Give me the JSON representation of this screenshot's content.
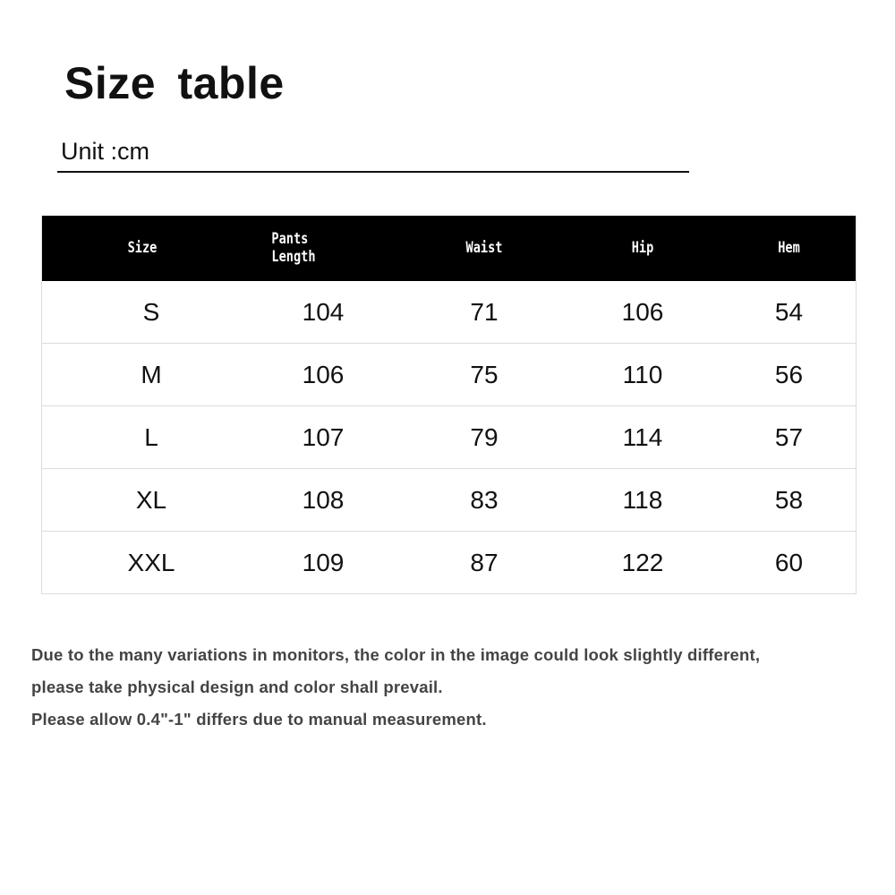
{
  "title": "Size table",
  "unit": "Unit :cm",
  "table": {
    "headers": [
      "Size",
      "Pants\nLength",
      "Waist",
      "Hip",
      "Hem"
    ],
    "rows": [
      [
        "S",
        "104",
        "71",
        "106",
        "54"
      ],
      [
        "M",
        "106",
        "75",
        "110",
        "56"
      ],
      [
        "L",
        "107",
        "79",
        "114",
        "57"
      ],
      [
        "XL",
        "108",
        "83",
        "118",
        "58"
      ],
      [
        "XXL",
        "109",
        "87",
        "122",
        "60"
      ]
    ]
  },
  "notes": [
    "Due to the many variations in monitors, the color in the image could look slightly different,",
    "please take physical design and color shall prevail.",
    "Please allow 0.4\"-1\" differs due to manual measurement."
  ],
  "colors": {
    "header_bg": "#000000",
    "header_text": "#ffffff",
    "note_text": "#444444",
    "grid": "#dcdcdc"
  }
}
